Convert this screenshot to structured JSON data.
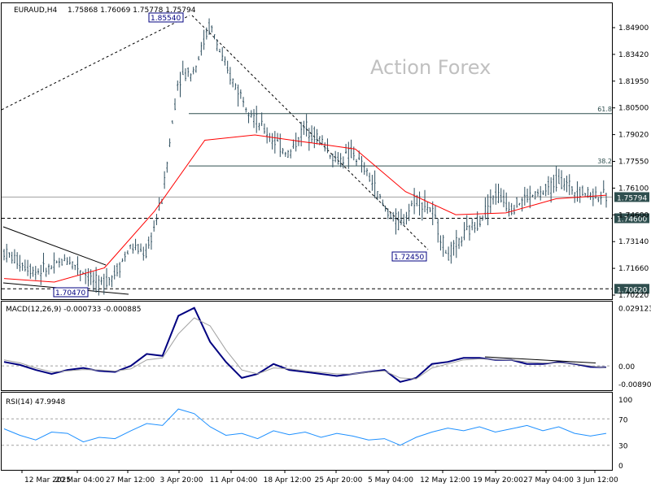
{
  "header": {
    "symbol_timeframe": "EURAUD,H4",
    "ohlc": "1.75868 1.76069 1.75778 1.75794"
  },
  "watermark": "Action Forex",
  "colors": {
    "candles": "#2f4f5f",
    "ma": "#ff0000",
    "macd": "#000080",
    "macd_signal": "#a0a0a0",
    "rsi": "#1e90ff",
    "label_bg": "#2f4f4f",
    "trendline": "#000000",
    "grid": "#c8c8c8"
  },
  "chart_data": [
    {
      "type": "candlestick",
      "title": "EURAUD,H4",
      "ylim": [
        1.7022,
        1.8645
      ],
      "y_ticks": [
        "1.84900",
        "1.83420",
        "1.81950",
        "1.80500",
        "1.79020",
        "1.77550",
        "1.76100",
        "1.74600",
        "1.73140",
        "1.71660",
        "1.70220"
      ],
      "x_ticks": [
        "12 Mar 2025",
        "20 Mar 04:00",
        "27 Mar 12:00",
        "3 Apr 20:00",
        "11 Apr 04:00",
        "18 Apr 12:00",
        "25 Apr 20:00",
        "5 May 04:00",
        "12 May 12:00",
        "19 May 20:00",
        "27 May 04:00",
        "3 Jun 12:00"
      ],
      "price_series": {
        "name": "close",
        "points": [
          [
            "12 Mar 2025",
            1.727
          ],
          [
            "15 Mar",
            1.721
          ],
          [
            "18 Mar",
            1.716
          ],
          [
            "20 Mar 04:00",
            1.718
          ],
          [
            "22 Mar",
            1.723
          ],
          [
            "24 Mar",
            1.716
          ],
          [
            "26 Mar",
            1.708
          ],
          [
            "27 Mar 12:00",
            1.715
          ],
          [
            "29 Mar",
            1.73
          ],
          [
            "31 Mar",
            1.726
          ],
          [
            "2 Apr",
            1.758
          ],
          [
            "3 Apr 20:00",
            1.825
          ],
          [
            "4 Apr",
            1.83
          ],
          [
            "5 Apr",
            1.8554
          ],
          [
            "7 Apr",
            1.83
          ],
          [
            "9 Apr",
            1.815
          ],
          [
            "11 Apr 04:00",
            1.8
          ],
          [
            "13 Apr",
            1.79
          ],
          [
            "15 Apr",
            1.782
          ],
          [
            "18 Apr 12:00",
            1.798
          ],
          [
            "20 Apr",
            1.79
          ],
          [
            "23 Apr",
            1.778
          ],
          [
            "25 Apr 20:00",
            1.783
          ],
          [
            "28 Apr",
            1.77
          ],
          [
            "1 May",
            1.752
          ],
          [
            "5 May 04:00",
            1.742
          ],
          [
            "7 May",
            1.758
          ],
          [
            "9 May",
            1.75
          ],
          [
            "12 May 12:00",
            1.7245
          ],
          [
            "14 May",
            1.736
          ],
          [
            "16 May",
            1.745
          ],
          [
            "19 May 20:00",
            1.76
          ],
          [
            "22 May",
            1.752
          ],
          [
            "25 May",
            1.758
          ],
          [
            "27 May 04:00",
            1.76
          ],
          [
            "30 May",
            1.768
          ],
          [
            "2 Jun",
            1.762
          ],
          [
            "3 Jun 12:00",
            1.76
          ],
          [
            "4 Jun",
            1.7579
          ]
        ]
      },
      "moving_average": [
        [
          "12 Mar 2025",
          1.712
        ],
        [
          "20 Mar 04:00",
          1.71
        ],
        [
          "27 Mar 12:00",
          1.718
        ],
        [
          "3 Apr 20:00",
          1.75
        ],
        [
          "7 Apr",
          1.79
        ],
        [
          "11 Apr 04:00",
          1.793
        ],
        [
          "18 Apr 12:00",
          1.789
        ],
        [
          "25 Apr 20:00",
          1.785
        ],
        [
          "5 May 04:00",
          1.761
        ],
        [
          "12 May 12:00",
          1.748
        ],
        [
          "19 May 20:00",
          1.749
        ],
        [
          "27 May 04:00",
          1.757
        ],
        [
          "3 Jun 12:00",
          1.759
        ]
      ],
      "horizontal_levels": [
        {
          "label": "61.8",
          "value": 1.805
        },
        {
          "label": "38.2",
          "value": 1.7755
        },
        {
          "label": "1.75794",
          "value": 1.75794
        },
        {
          "label": "1.74600",
          "value": 1.746
        },
        {
          "label": "1.70620",
          "value": 1.7062
        }
      ],
      "annotations": [
        "1.85540",
        "1.72450",
        "1.70470"
      ]
    },
    {
      "type": "line",
      "title": "MACD(12,26,9) -0.000733 -0.000885",
      "y_ticks": [
        "0.029123",
        "0.00",
        "-0.008901"
      ],
      "ylim": [
        -0.0105,
        0.0305
      ],
      "series": [
        {
          "name": "MACD",
          "values": [
            0.002,
            0.0005,
            -0.002,
            -0.004,
            -0.002,
            -0.001,
            -0.0025,
            -0.003,
            0.0,
            0.006,
            0.005,
            0.025,
            0.029,
            0.012,
            0.002,
            -0.006,
            -0.004,
            0.001,
            -0.002,
            -0.003,
            -0.004,
            -0.005,
            -0.004,
            -0.003,
            -0.002,
            -0.008,
            -0.006,
            0.001,
            0.002,
            0.004,
            0.004,
            0.003,
            0.003,
            0.001,
            0.001,
            0.002,
            0.001,
            -0.0005,
            -0.0007
          ]
        },
        {
          "name": "Signal",
          "values": [
            0.003,
            0.0015,
            -0.001,
            -0.003,
            -0.0025,
            -0.0018,
            -0.002,
            -0.0026,
            -0.0015,
            0.003,
            0.004,
            0.016,
            0.024,
            0.02,
            0.008,
            -0.002,
            -0.004,
            -0.001,
            -0.0015,
            -0.0025,
            -0.0032,
            -0.004,
            -0.004,
            -0.0032,
            -0.0025,
            -0.006,
            -0.0065,
            -0.001,
            0.001,
            0.003,
            0.0035,
            0.0032,
            0.003,
            0.002,
            0.0015,
            0.0015,
            0.0012,
            0.0,
            -0.0009
          ]
        }
      ]
    },
    {
      "type": "line",
      "title": "RSI(14) 47.9948",
      "y_ticks": [
        "100",
        "70",
        "30",
        "0"
      ],
      "ylim": [
        0,
        100
      ],
      "series": [
        {
          "name": "RSI",
          "values": [
            55,
            45,
            38,
            50,
            48,
            35,
            42,
            40,
            52,
            63,
            60,
            85,
            78,
            58,
            45,
            48,
            40,
            52,
            46,
            50,
            42,
            48,
            44,
            38,
            40,
            30,
            42,
            50,
            56,
            52,
            58,
            50,
            55,
            60,
            52,
            58,
            48,
            44,
            48
          ]
        }
      ]
    }
  ]
}
